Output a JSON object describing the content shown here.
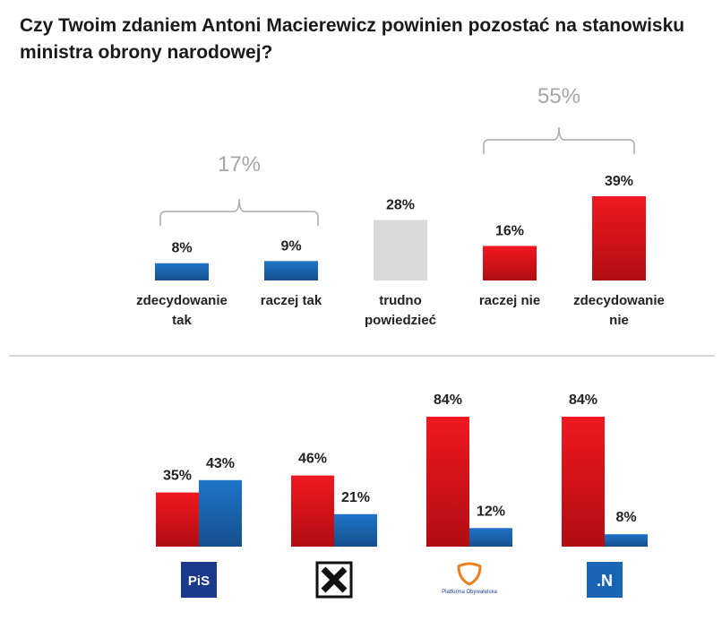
{
  "chart_data": [
    {
      "type": "bar",
      "title": "Czy Twoim zdaniem Antoni Macierewicz powinien pozostać na stanowisku ministra obrony narodowej?",
      "categories": [
        "zdecydowanie tak",
        "raczej tak",
        "trudno powiedzieć",
        "raczej nie",
        "zdecydowanie nie"
      ],
      "values": [
        8,
        9,
        28,
        16,
        39
      ],
      "value_labels": [
        "8%",
        "9%",
        "28%",
        "16%",
        "39%"
      ],
      "colors": [
        "#1d6ab9",
        "#1d6ab9",
        "#d9d9d9",
        "#e8141c",
        "#e8141c"
      ],
      "annotations": [
        {
          "text": "17%"
        },
        {
          "text": "55%"
        }
      ]
    },
    {
      "type": "grouped-bar",
      "categories": [
        "PiS",
        null,
        "Platforma Obywatelska",
        ".N"
      ],
      "series": [
        {
          "color": "#e8141c",
          "values": [
            35,
            46,
            84,
            84
          ],
          "value_labels": [
            "35%",
            "46%",
            "84%",
            "84%"
          ]
        },
        {
          "color": "#1d6ab9",
          "values": [
            43,
            21,
            12,
            8
          ],
          "value_labels": [
            "43%",
            "21%",
            "12%",
            "8%"
          ]
        }
      ]
    }
  ]
}
